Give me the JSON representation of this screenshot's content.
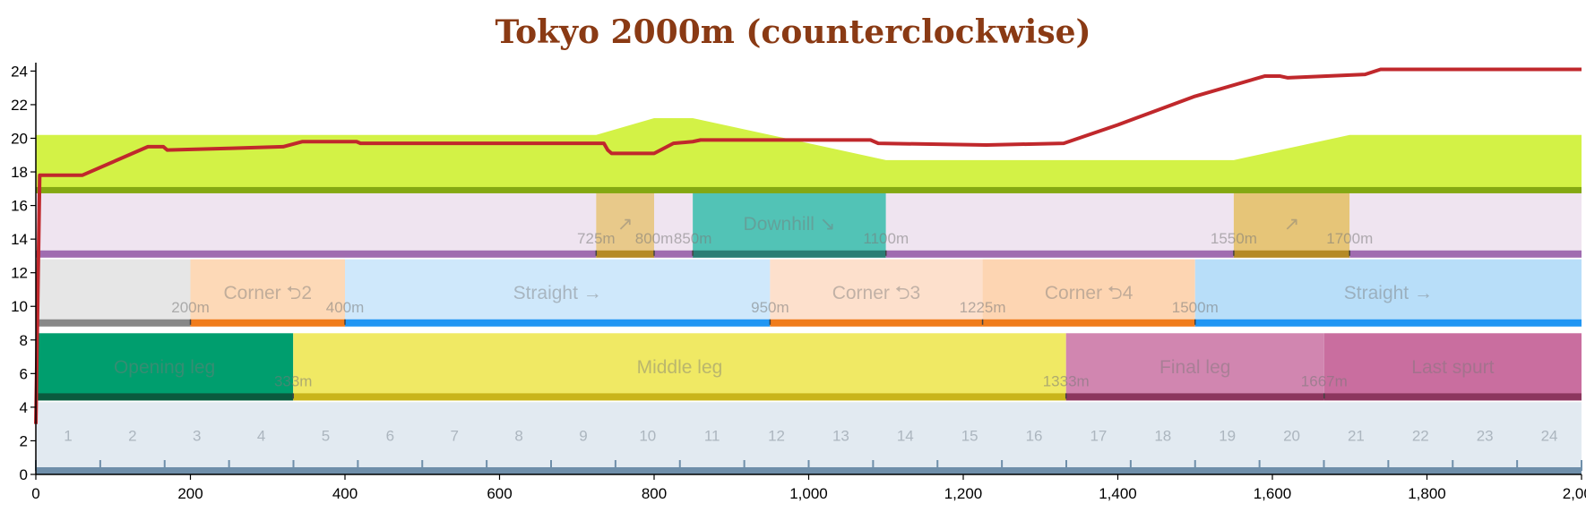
{
  "chart_data": {
    "type": "line",
    "title": "Tokyo 2000m (counterclockwise)",
    "xlim": [
      0,
      2000
    ],
    "ylim": [
      0,
      24.5
    ],
    "x_ticks": [
      {
        "v": 0,
        "label": "0"
      },
      {
        "v": 200,
        "label": "200"
      },
      {
        "v": 400,
        "label": "400"
      },
      {
        "v": 600,
        "label": "600"
      },
      {
        "v": 800,
        "label": "800"
      },
      {
        "v": 1000,
        "label": "1,000"
      },
      {
        "v": 1200,
        "label": "1,200"
      },
      {
        "v": 1400,
        "label": "1,400"
      },
      {
        "v": 1600,
        "label": "1,600"
      },
      {
        "v": 1800,
        "label": "1,800"
      },
      {
        "v": 2000,
        "label": "2,000"
      }
    ],
    "y_ticks": [
      {
        "v": 0,
        "label": "0"
      },
      {
        "v": 2,
        "label": "2"
      },
      {
        "v": 4,
        "label": "4"
      },
      {
        "v": 6,
        "label": "6"
      },
      {
        "v": 8,
        "label": "8"
      },
      {
        "v": 10,
        "label": "10"
      },
      {
        "v": 12,
        "label": "12"
      },
      {
        "v": 14,
        "label": "14"
      },
      {
        "v": 16,
        "label": "16"
      },
      {
        "v": 18,
        "label": "18"
      },
      {
        "v": 20,
        "label": "20"
      },
      {
        "v": 22,
        "label": "22"
      },
      {
        "v": 24,
        "label": "24"
      }
    ],
    "speed_line": {
      "color": "#c0282c",
      "points": [
        [
          0,
          3
        ],
        [
          5,
          17.8
        ],
        [
          60,
          17.8
        ],
        [
          145,
          19.5
        ],
        [
          165,
          19.5
        ],
        [
          170,
          19.3
        ],
        [
          250,
          19.4
        ],
        [
          320,
          19.5
        ],
        [
          345,
          19.8
        ],
        [
          415,
          19.8
        ],
        [
          420,
          19.7
        ],
        [
          570,
          19.7
        ],
        [
          730,
          19.7
        ],
        [
          735,
          19.7
        ],
        [
          740,
          19.3
        ],
        [
          745,
          19.1
        ],
        [
          800,
          19.1
        ],
        [
          825,
          19.7
        ],
        [
          850,
          19.8
        ],
        [
          860,
          19.9
        ],
        [
          1080,
          19.9
        ],
        [
          1090,
          19.7
        ],
        [
          1230,
          19.6
        ],
        [
          1330,
          19.7
        ],
        [
          1400,
          20.8
        ],
        [
          1500,
          22.5
        ],
        [
          1590,
          23.7
        ],
        [
          1610,
          23.7
        ],
        [
          1620,
          23.6
        ],
        [
          1720,
          23.8
        ],
        [
          1740,
          24.1
        ],
        [
          2000,
          24.1
        ]
      ]
    },
    "elevation_band": {
      "fill": "#d3f246",
      "base_color": "#84a812",
      "y0": 17.1,
      "top": [
        [
          0,
          20.2
        ],
        [
          725,
          20.2
        ],
        [
          800,
          21.2
        ],
        [
          850,
          21.2
        ],
        [
          1100,
          18.7
        ],
        [
          1550,
          18.7
        ],
        [
          1700,
          20.2
        ],
        [
          2000,
          20.2
        ]
      ]
    },
    "bands": [
      {
        "name": "slopes",
        "y0": 12.9,
        "y1": 16.9,
        "segments": [
          {
            "x0": 0,
            "x1": 725,
            "fill": "#efe4f0",
            "base": "#a06cb0",
            "label": ""
          },
          {
            "x0": 725,
            "x1": 800,
            "fill": "#e8c98a",
            "base": "#b58a26",
            "label": "↗"
          },
          {
            "x0": 800,
            "x1": 850,
            "fill": "#efe4f0",
            "base": "#a06cb0",
            "label": ""
          },
          {
            "x0": 850,
            "x1": 1100,
            "fill": "#52c3b6",
            "base": "#2a7d74",
            "label": "Downhill ↘"
          },
          {
            "x0": 1100,
            "x1": 1550,
            "fill": "#efe4f0",
            "base": "#a06cb0",
            "label": ""
          },
          {
            "x0": 1550,
            "x1": 1700,
            "fill": "#e6c578",
            "base": "#b58a26",
            "label": "↗"
          },
          {
            "x0": 1700,
            "x1": 2000,
            "fill": "#efe4f0",
            "base": "#a06cb0",
            "label": ""
          }
        ],
        "marks": [
          "725m",
          "800m",
          "850m",
          "1100m",
          "1550m",
          "1700m"
        ],
        "mark_x": [
          725,
          800,
          850,
          1100,
          1550,
          1700
        ]
      },
      {
        "name": "track",
        "y0": 8.8,
        "y1": 12.8,
        "segments": [
          {
            "x0": 0,
            "x1": 200,
            "fill": "#e6e6e6",
            "base": "#888888",
            "label": ""
          },
          {
            "x0": 200,
            "x1": 400,
            "fill": "#fdd9b7",
            "base": "#f07c1c",
            "label": "Corner ⮌2"
          },
          {
            "x0": 400,
            "x1": 950,
            "fill": "#cfe8fb",
            "base": "#2196f3",
            "label": "Straight →"
          },
          {
            "x0": 950,
            "x1": 1225,
            "fill": "#fde0cc",
            "base": "#f07c1c",
            "label": "Corner ⮌3"
          },
          {
            "x0": 1225,
            "x1": 1500,
            "fill": "#fdd5b2",
            "base": "#f07c1c",
            "label": "Corner ⮌4"
          },
          {
            "x0": 1500,
            "x1": 2000,
            "fill": "#b8def9",
            "base": "#2196f3",
            "label": "Straight →"
          }
        ],
        "marks": [
          "200m",
          "400m",
          "950m",
          "1225m",
          "1500m"
        ],
        "mark_x": [
          200,
          400,
          950,
          1225,
          1500
        ]
      },
      {
        "name": "phases",
        "y0": 4.4,
        "y1": 8.4,
        "segments": [
          {
            "x0": 0,
            "x1": 333,
            "fill": "#009e6e",
            "base": "#0a5a3e",
            "label": "Opening leg"
          },
          {
            "x0": 333,
            "x1": 1333,
            "fill": "#f0e964",
            "base": "#c9b51a",
            "label": "Middle leg"
          },
          {
            "x0": 1333,
            "x1": 1667,
            "fill": "#d186b0",
            "base": "#8c365e",
            "label": "Final leg"
          },
          {
            "x0": 1667,
            "x1": 2000,
            "fill": "#c96e9f",
            "base": "#8c365e",
            "label": "Last spurt"
          }
        ],
        "marks": [
          "333m",
          "1333m",
          "1667m"
        ],
        "mark_x": [
          333,
          1333,
          1667
        ]
      }
    ],
    "sections": {
      "y0": 0,
      "y1": 4.3,
      "fill": "#e2eaf1",
      "base": "#6f8faa",
      "numbers": [
        "1",
        "2",
        "3",
        "4",
        "5",
        "6",
        "7",
        "8",
        "9",
        "10",
        "11",
        "12",
        "13",
        "14",
        "15",
        "16",
        "17",
        "18",
        "19",
        "20",
        "21",
        "22",
        "23",
        "24"
      ]
    }
  }
}
